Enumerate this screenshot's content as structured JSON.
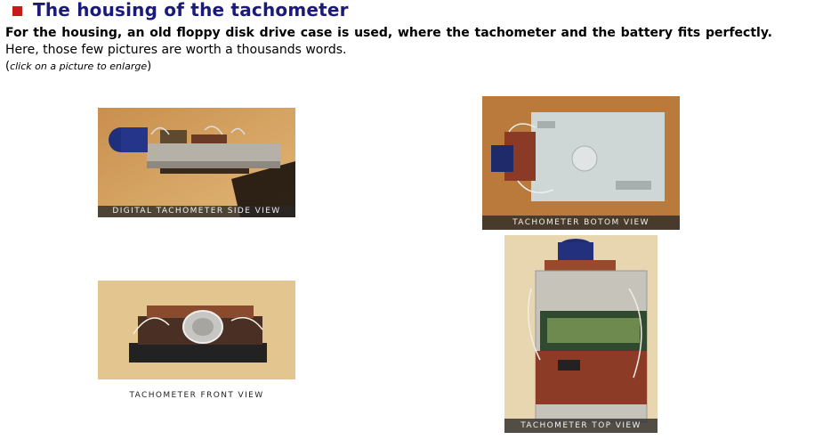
{
  "section": {
    "title": "The housing of the tachometer",
    "intro_bold": "For the housing, an old floppy disk drive case is used, where the tachometer and the battery fits perfectly.",
    "intro_rest": " Here, those few pictures are worth a thousands words.",
    "hint_open": "(",
    "hint_text": "click on a picture to enlarge",
    "hint_close": ")"
  },
  "photos": [
    {
      "caption": "Digital Tachometer side view"
    },
    {
      "caption": "Tachometer Botom view"
    },
    {
      "caption": "Tachometer front view"
    },
    {
      "caption": "Tachometer TOP view"
    }
  ],
  "colors": {
    "heading": "#1a1a7a",
    "bullet": "#c81a1a"
  }
}
